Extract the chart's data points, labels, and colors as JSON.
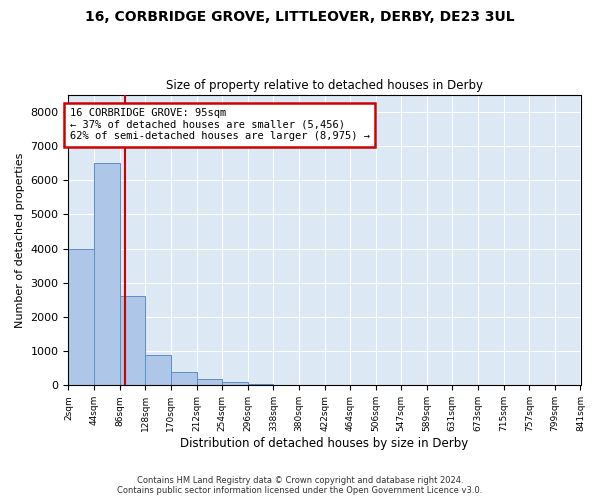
{
  "title_line1": "16, CORBRIDGE GROVE, LITTLEOVER, DERBY, DE23 3UL",
  "title_line2": "Size of property relative to detached houses in Derby",
  "xlabel": "Distribution of detached houses by size in Derby",
  "ylabel": "Number of detached properties",
  "bar_values": [
    4000,
    6500,
    2600,
    900,
    400,
    200,
    100,
    50,
    10,
    0,
    0,
    0,
    0,
    0,
    0,
    0,
    0,
    0,
    0,
    0
  ],
  "bin_edges": [
    2,
    44,
    86,
    128,
    170,
    212,
    254,
    296,
    338,
    380,
    422,
    464,
    506,
    547,
    589,
    631,
    673,
    715,
    757,
    799,
    841
  ],
  "tick_labels": [
    "2sqm",
    "44sqm",
    "86sqm",
    "128sqm",
    "170sqm",
    "212sqm",
    "254sqm",
    "296sqm",
    "338sqm",
    "380sqm",
    "422sqm",
    "464sqm",
    "506sqm",
    "547sqm",
    "589sqm",
    "631sqm",
    "673sqm",
    "715sqm",
    "757sqm",
    "799sqm",
    "841sqm"
  ],
  "bar_color": "#aec6e8",
  "bar_edge_color": "#5a8fc2",
  "background_color": "#dce9f5",
  "grid_color": "#ffffff",
  "vline_x": 95,
  "vline_color": "#cc0000",
  "annotation_text": "16 CORBRIDGE GROVE: 95sqm\n← 37% of detached houses are smaller (5,456)\n62% of semi-detached houses are larger (8,975) →",
  "annotation_box_color": "#cc0000",
  "ylim": [
    0,
    8500
  ],
  "yticks": [
    0,
    1000,
    2000,
    3000,
    4000,
    5000,
    6000,
    7000,
    8000
  ],
  "footer_line1": "Contains HM Land Registry data © Crown copyright and database right 2024.",
  "footer_line2": "Contains public sector information licensed under the Open Government Licence v3.0."
}
